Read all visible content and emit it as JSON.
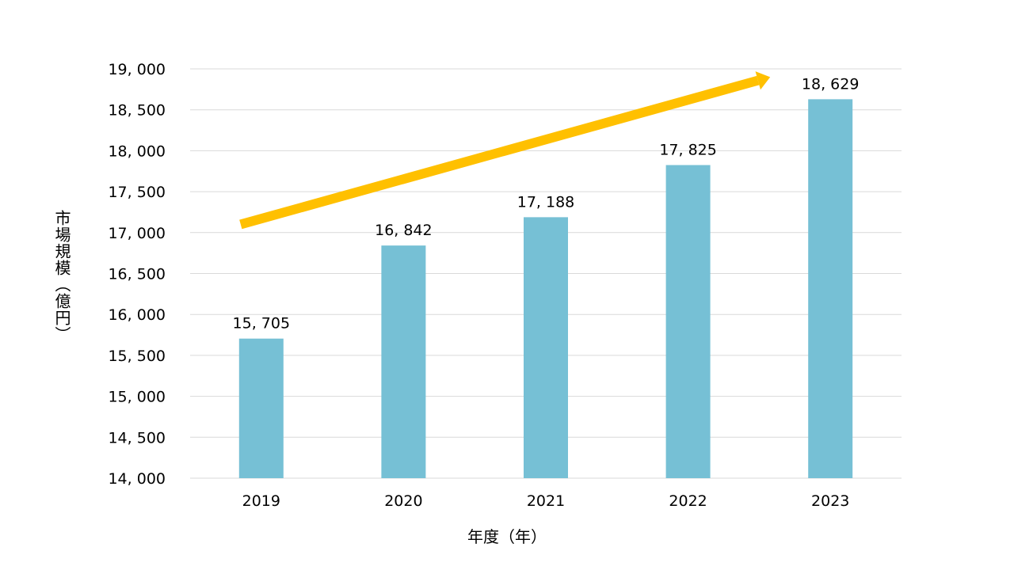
{
  "chart_data": {
    "type": "bar",
    "categories": [
      "2019",
      "2020",
      "2021",
      "2022",
      "2023"
    ],
    "values": [
      15705,
      16842,
      17188,
      17825,
      18629
    ],
    "data_labels": [
      "15, 705",
      "16, 842",
      "17, 188",
      "17, 825",
      "18, 629"
    ],
    "xlabel": "年度（年）",
    "ylabel": "市場規模（億円）",
    "ylim": [
      14000,
      19000
    ],
    "y_ticks": [
      14000,
      14500,
      15000,
      15500,
      16000,
      16500,
      17000,
      17500,
      18000,
      18500,
      19000
    ],
    "y_tick_labels": [
      "14, 000",
      "14, 500",
      "15, 000",
      "15, 500",
      "16, 000",
      "16, 500",
      "17, 000",
      "17, 500",
      "18, 000",
      "18, 500",
      "19, 000"
    ],
    "grid": true,
    "legend": "none",
    "trend_arrow": {
      "from_value": 17100,
      "to_value": 18900,
      "from_category": "2019",
      "to_category": "2023"
    },
    "colors": {
      "bar": "#76C0D5",
      "arrow": "#FFC000",
      "grid": "#D9D9D9"
    }
  }
}
